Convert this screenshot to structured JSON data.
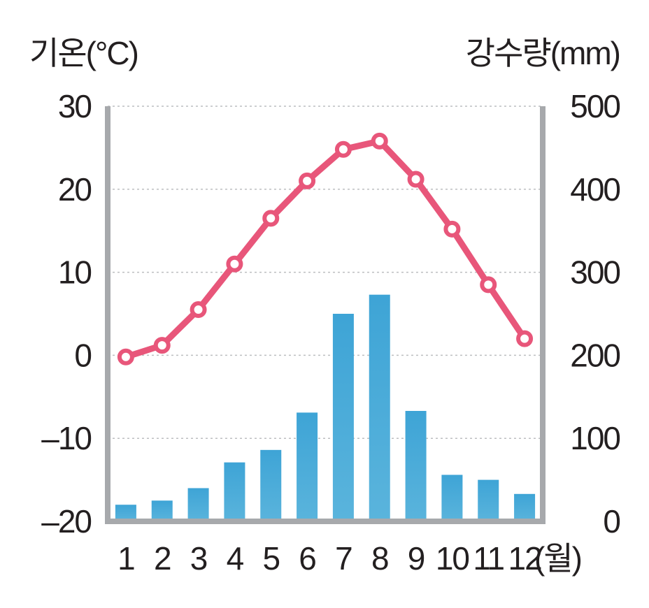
{
  "chart_data": {
    "type": "bar+line",
    "left_axis_label": "기온(°C)",
    "right_axis_label": "강수량(mm)",
    "x_unit_label": "(월)",
    "categories": [
      "1",
      "2",
      "3",
      "4",
      "5",
      "6",
      "7",
      "8",
      "9",
      "10",
      "11",
      "12"
    ],
    "temperature": {
      "axis": "left",
      "values": [
        -0.2,
        1.2,
        5.5,
        11.0,
        16.5,
        21.0,
        24.8,
        25.8,
        21.2,
        15.2,
        8.5,
        2.0
      ],
      "color": "#e8567a"
    },
    "precipitation": {
      "axis": "right",
      "values": [
        20,
        25,
        40,
        71,
        86,
        131,
        250,
        273,
        133,
        56,
        50,
        33
      ],
      "color": "#5ab4dc"
    },
    "left_ylim": [
      -20,
      30
    ],
    "right_ylim": [
      0,
      500
    ],
    "left_ticks": [
      "30",
      "20",
      "10",
      "0",
      "–10",
      "–20"
    ],
    "right_ticks": [
      "500",
      "400",
      "300",
      "200",
      "100",
      "0"
    ],
    "grid": true,
    "axis_color": "#a7a9ac"
  }
}
